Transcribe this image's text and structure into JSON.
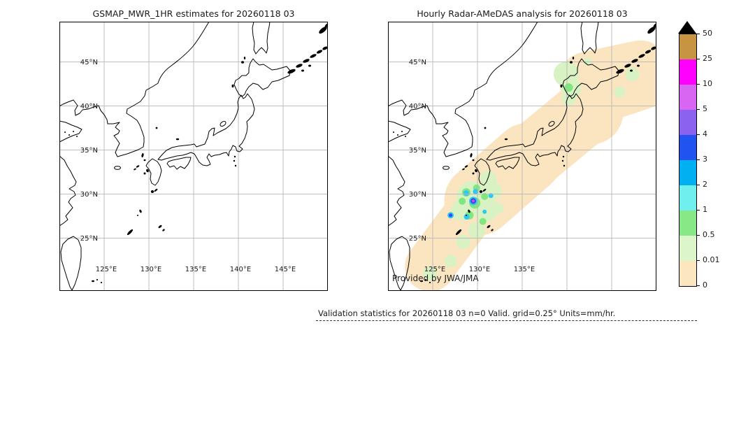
{
  "colors": {
    "text": "#1a1a1a",
    "grid": "#b5b5b5",
    "coast": "#000000",
    "frame": "#000000"
  },
  "panels": [
    {
      "title": "GSMAP_MWR_1HR estimates for 20260118 03",
      "lat_ticks": [
        {
          "label": "45°N",
          "value": 45
        },
        {
          "label": "40°N",
          "value": 40
        },
        {
          "label": "35°N",
          "value": 35
        },
        {
          "label": "30°N",
          "value": 30
        },
        {
          "label": "25°N",
          "value": 25
        }
      ],
      "lon_ticks": [
        {
          "label": "125°E",
          "value": 125
        },
        {
          "label": "130°E",
          "value": 130
        },
        {
          "label": "135°E",
          "value": 135
        },
        {
          "label": "140°E",
          "value": 140
        },
        {
          "label": "145°E",
          "value": 145
        }
      ],
      "credit": ""
    },
    {
      "title": "Hourly Radar-AMeDAS analysis for 20260118 03",
      "lat_ticks": [
        {
          "label": "45°N",
          "value": 45
        },
        {
          "label": "40°N",
          "value": 40
        },
        {
          "label": "35°N",
          "value": 35
        },
        {
          "label": "30°N",
          "value": 30
        },
        {
          "label": "25°N",
          "value": 25
        }
      ],
      "lon_ticks": [
        {
          "label": "125°E",
          "value": 125
        },
        {
          "label": "130°E",
          "value": 130
        },
        {
          "label": "135°E",
          "value": 135
        },
        {
          "label": "",
          "value": 140
        },
        {
          "label": "",
          "value": 145
        }
      ],
      "credit": "Provided by JWA/JMA"
    }
  ],
  "footer": {
    "validation_text": "Validation statistics for 20260118 03  n=0 Valid. grid=0.25° Units=mm/hr."
  },
  "chart_data": {
    "type": "heatmap",
    "subtype": "geographic precipitation maps (lat/lon equirectangular, Japan region)",
    "title_left": "GSMAP_MWR_1HR estimates for 20260118 03",
    "title_right": "Hourly Radar-AMeDAS analysis for 20260118 03",
    "units": "mm/hr",
    "grid_resolution": "0.25°",
    "n_valid_points": 0,
    "extent": {
      "lon": [
        120,
        150
      ],
      "lat": [
        19.1,
        49.6
      ]
    },
    "gridlines": {
      "lon": [
        125,
        130,
        135,
        140,
        145
      ],
      "lat": [
        25,
        30,
        35,
        40,
        45
      ]
    },
    "colorbar": {
      "tick_labels_top_to_bottom": [
        "50",
        "25",
        "10",
        "5",
        "4",
        "3",
        "2",
        "1",
        "0.5",
        "0.01",
        "0"
      ],
      "segment_colors_top_to_bottom": [
        "#c79441",
        "#ff00ff",
        "#d966f2",
        "#8b62f0",
        "#2153f0",
        "#00b0f0",
        "#6ff0ef",
        "#86e986",
        "#ddf5cb",
        "#fce6c0"
      ],
      "over_color": "#000000"
    },
    "left_panel_precipitation": "none (panel empty, n=0 valid points)",
    "overlay": {
      "level_colors": {
        "trace": "#fbe5c0",
        "light": "#d9f2c4",
        "mod": "#7fe77f",
        "r2-3": "#2fc8f2",
        "r3-4": "#2b50ee",
        "r10-25": "#d944e0"
      },
      "bands": [
        {
          "level": "trace",
          "width": 72,
          "points": [
            [
              124.7,
              21.8
            ],
            [
              130.2,
              29.3
            ]
          ]
        },
        {
          "level": "trace",
          "width": 100,
          "points": [
            [
              130.2,
              29.3
            ],
            [
              135.6,
              34.1
            ]
          ]
        },
        {
          "level": "trace",
          "width": 92,
          "points": [
            [
              136.0,
              34.2
            ],
            [
              142.3,
              39.5
            ]
          ]
        },
        {
          "level": "trace",
          "width": 92,
          "points": [
            [
              142.7,
              39.3
            ],
            [
              143.5,
              42.2
            ]
          ]
        },
        {
          "level": "trace",
          "width": 82,
          "points": [
            [
              142.3,
              42.9
            ],
            [
              148.2,
              44.2
            ]
          ]
        },
        {
          "level": "trace",
          "width": 70,
          "points": [
            [
              145.8,
              41.5
            ],
            [
              149.0,
              42.6
            ]
          ]
        }
      ],
      "patches": [
        {
          "level": "light",
          "lon": 139.92,
          "lat": 43.62,
          "r": 18
        },
        {
          "level": "light",
          "lon": 140.5,
          "lat": 42.0,
          "r": 14
        },
        {
          "level": "light",
          "lon": 140.2,
          "lat": 40.85,
          "r": 10
        },
        {
          "level": "light",
          "lon": 147.3,
          "lat": 43.6,
          "r": 10
        },
        {
          "level": "light",
          "lon": 145.9,
          "lat": 41.6,
          "r": 8
        },
        {
          "level": "light",
          "lon": 142.3,
          "lat": 45.05,
          "r": 6
        },
        {
          "level": "light",
          "lon": 129.4,
          "lat": 29.7,
          "r": 22
        },
        {
          "level": "light",
          "lon": 130.9,
          "lat": 28.3,
          "r": 18
        },
        {
          "level": "light",
          "lon": 128.2,
          "lat": 28.15,
          "r": 15
        },
        {
          "level": "light",
          "lon": 131.7,
          "lat": 30.4,
          "r": 13
        },
        {
          "level": "light",
          "lon": 129.9,
          "lat": 25.9,
          "r": 12
        },
        {
          "level": "light",
          "lon": 128.4,
          "lat": 24.6,
          "r": 10
        },
        {
          "level": "light",
          "lon": 127.0,
          "lat": 22.4,
          "r": 9
        },
        {
          "level": "light",
          "lon": 124.7,
          "lat": 21.0,
          "r": 10
        },
        {
          "level": "light",
          "lon": 131.2,
          "lat": 31.7,
          "r": 12
        },
        {
          "level": "light",
          "lon": 132.3,
          "lat": 28.4,
          "r": 8
        },
        {
          "level": "mod",
          "lon": 128.75,
          "lat": 30.2,
          "r": 6
        },
        {
          "level": "mod",
          "lon": 129.7,
          "lat": 29.0,
          "r": 8
        },
        {
          "level": "mod",
          "lon": 130.8,
          "lat": 29.73,
          "r": 5
        },
        {
          "level": "mod",
          "lon": 129.1,
          "lat": 27.6,
          "r": 6
        },
        {
          "level": "mod",
          "lon": 130.6,
          "lat": 26.9,
          "r": 5
        },
        {
          "level": "mod",
          "lon": 128.3,
          "lat": 29.2,
          "r": 5
        },
        {
          "level": "mod",
          "lon": 129.9,
          "lat": 30.7,
          "r": 5
        },
        {
          "level": "mod",
          "lon": 140.2,
          "lat": 42.1,
          "r": 6
        },
        {
          "level": "r2-3",
          "lon": 128.75,
          "lat": 30.12,
          "r": 4
        },
        {
          "level": "r2-3",
          "lon": 129.8,
          "lat": 30.28,
          "r": 4
        },
        {
          "level": "r2-3",
          "lon": 131.5,
          "lat": 29.82,
          "r": 3.5
        },
        {
          "level": "r2-3",
          "lon": 129.53,
          "lat": 29.22,
          "r": 6
        },
        {
          "level": "r2-3",
          "lon": 127.0,
          "lat": 27.6,
          "r": 4.5
        },
        {
          "level": "r2-3",
          "lon": 128.8,
          "lat": 27.43,
          "r": 4
        },
        {
          "level": "r2-3",
          "lon": 130.8,
          "lat": 28.0,
          "r": 3
        },
        {
          "level": "r3-4",
          "lon": 129.53,
          "lat": 29.22,
          "r": 4
        },
        {
          "level": "r3-4",
          "lon": 127.0,
          "lat": 27.6,
          "r": 2.5
        },
        {
          "level": "r10-25",
          "lon": 129.53,
          "lat": 29.22,
          "r": 2
        }
      ]
    }
  }
}
